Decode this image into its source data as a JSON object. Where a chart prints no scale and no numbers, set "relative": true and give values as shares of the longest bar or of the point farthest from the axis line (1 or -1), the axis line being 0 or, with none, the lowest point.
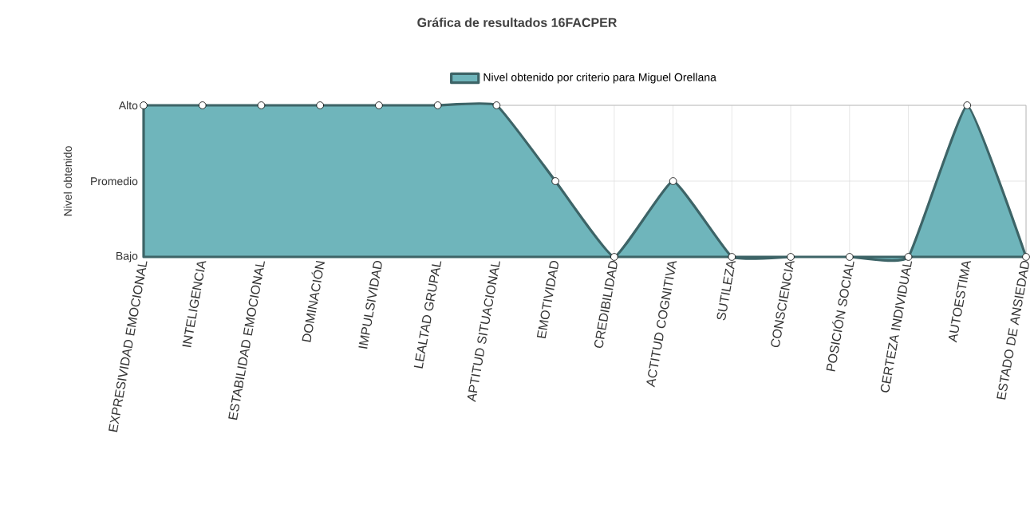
{
  "chart_data": {
    "type": "area",
    "title": "Gráfica de resultados 16FACPER",
    "ylabel": "Nivel obtenido",
    "categories": [
      "EXPRESIVIDAD EMOCIONAL",
      "INTELIGENCIA",
      "ESTABILIDAD EMOCIONAL",
      "DOMINACIÓN",
      "IMPULSIVIDAD",
      "LEALTAD GRUPAL",
      "APTITUD SITUACIONAL",
      "EMOTIVIDAD",
      "CREDIBILIDAD",
      "ACTITUD COGNITIVA",
      "SUTILEZA",
      "CONSCIENCIA",
      "POSICIÓN SOCIAL",
      "CERTEZA INDIVIDUAL",
      "AUTOESTIMA",
      "ESTADO DE ANSIEDAD"
    ],
    "series": [
      {
        "name": "Nivel obtenido por criterio para Miguel Orellana",
        "color": "#6fb5bb",
        "values": [
          1,
          1,
          1,
          1,
          1,
          1,
          1,
          0.5,
          0,
          0.5,
          0,
          0,
          0,
          0,
          1,
          0
        ]
      }
    ],
    "relative": true,
    "annotations": [
      "Alto",
      "Promedio",
      "Bajo"
    ],
    "grid": true,
    "legend": "top",
    "marker": "circle",
    "line_style": "solid"
  }
}
